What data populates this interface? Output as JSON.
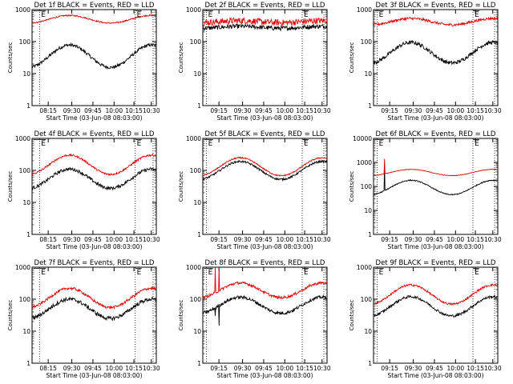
{
  "chart_data": [
    {
      "type": "line",
      "title": "Det 1f BLACK = Events, RED = LLD",
      "xlabel": "Start Time (03-Jun-08 08:03:00)",
      "ylabel": "Counts/sec",
      "yscale": "log",
      "ylim": [
        1,
        1000
      ],
      "yticks": [
        1,
        10,
        100,
        1000
      ],
      "xticks": [
        "08:15",
        "09:30",
        "09:45",
        "10:00",
        "10:15",
        "10:30"
      ],
      "markers": [
        {
          "label": "E",
          "pos": 0.06
        },
        {
          "label": "E",
          "pos": 0.83
        }
      ],
      "series": [
        {
          "color": "#000000",
          "base": 35,
          "amp": 0.35,
          "noise": 0.05,
          "spikes": []
        },
        {
          "color": "#e00000",
          "base": 500,
          "amp": 0.12,
          "noise": 0.02,
          "spikes": []
        }
      ]
    },
    {
      "type": "line",
      "title": "Det 2f BLACK = Events, RED = LLD",
      "xlabel": "Start Time (03-Jun-08 08:03:00)",
      "ylabel": "Counts/sec",
      "yscale": "log",
      "ylim": [
        1,
        1000
      ],
      "yticks": [
        1,
        10,
        100,
        1000
      ],
      "xticks": [
        "09:15",
        "09:30",
        "09:45",
        "10:00",
        "10:15",
        "10:30"
      ],
      "markers": [
        {
          "label": "E",
          "pos": 0.03
        },
        {
          "label": "E",
          "pos": 0.8
        }
      ],
      "series": [
        {
          "color": "#000000",
          "base": 280,
          "amp": 0.03,
          "noise": 0.07,
          "spikes": []
        },
        {
          "color": "#e00000",
          "base": 420,
          "amp": 0.03,
          "noise": 0.1,
          "spikes": []
        }
      ]
    },
    {
      "type": "line",
      "title": "Det 3f BLACK = Events, RED = LLD",
      "xlabel": "Start Time (03-Jun-08 08:03:00)",
      "ylabel": "Counts/sec",
      "yscale": "log",
      "ylim": [
        1,
        1000
      ],
      "yticks": [
        1,
        10,
        100,
        1000
      ],
      "xticks": [
        "09:15",
        "09:30",
        "09:45",
        "10:00",
        "10:15",
        "10:30"
      ],
      "markers": [
        {
          "label": "E",
          "pos": 0.03
        },
        {
          "label": "E",
          "pos": 0.8
        }
      ],
      "series": [
        {
          "color": "#000000",
          "base": 45,
          "amp": 0.32,
          "noise": 0.06,
          "spikes": []
        },
        {
          "color": "#e00000",
          "base": 420,
          "amp": 0.1,
          "noise": 0.04,
          "spikes": []
        }
      ]
    },
    {
      "type": "line",
      "title": "Det 4f BLACK = Events, RED = LLD",
      "xlabel": "Start Time (03-Jun-08 08:03:00)",
      "ylabel": "Counts/sec",
      "yscale": "log",
      "ylim": [
        1,
        1000
      ],
      "yticks": [
        1,
        10,
        100,
        1000
      ],
      "xticks": [
        "08:15",
        "09:30",
        "09:45",
        "10:00",
        "10:15",
        "10:30"
      ],
      "markers": [
        {
          "label": "E",
          "pos": 0.06
        },
        {
          "label": "E",
          "pos": 0.83
        }
      ],
      "series": [
        {
          "color": "#000000",
          "base": 55,
          "amp": 0.3,
          "noise": 0.05,
          "spikes": []
        },
        {
          "color": "#e00000",
          "base": 150,
          "amp": 0.3,
          "noise": 0.03,
          "spikes": []
        }
      ]
    },
    {
      "type": "line",
      "title": "Det 5f BLACK = Events, RED = LLD",
      "xlabel": "Start Time (03-Jun-08 08:03:00)",
      "ylabel": "Counts/sec",
      "yscale": "log",
      "ylim": [
        1,
        1000
      ],
      "yticks": [
        1,
        10,
        100,
        1000
      ],
      "xticks": [
        "09:15",
        "09:30",
        "09:45",
        "10:00",
        "10:15",
        "10:30"
      ],
      "markers": [
        {
          "label": "E",
          "pos": 0.03
        },
        {
          "label": "E",
          "pos": 0.8
        }
      ],
      "series": [
        {
          "color": "#000000",
          "base": 100,
          "amp": 0.28,
          "noise": 0.03,
          "spikes": []
        },
        {
          "color": "#e00000",
          "base": 130,
          "amp": 0.28,
          "noise": 0.02,
          "spikes": []
        }
      ]
    },
    {
      "type": "line",
      "title": "Det 6f BLACK = Events, RED = LLD",
      "xlabel": "Start Time (03-Jun-08 08:03:00)",
      "ylabel": "Counts/sec",
      "yscale": "log",
      "ylim": [
        1,
        10000
      ],
      "yticks": [
        1,
        10,
        100,
        1000,
        10000
      ],
      "xticks": [
        "09:15",
        "09:30",
        "09:45",
        "10:00",
        "10:15",
        "10:30"
      ],
      "markers": [
        {
          "label": "E",
          "pos": 0.03
        },
        {
          "label": "E",
          "pos": 0.8
        }
      ],
      "series": [
        {
          "color": "#000000",
          "base": 90,
          "amp": 0.3,
          "noise": 0.02,
          "spikes": [
            {
              "at": 0.09,
              "value": 900
            }
          ]
        },
        {
          "color": "#e00000",
          "base": 380,
          "amp": 0.13,
          "noise": 0.01,
          "spikes": [
            {
              "at": 0.09,
              "value": 1400
            }
          ]
        }
      ]
    },
    {
      "type": "line",
      "title": "Det 7f BLACK = Events, RED = LLD",
      "xlabel": "Start Time (03-Jun-08 08:03:00)",
      "ylabel": "Counts/sec",
      "yscale": "log",
      "ylim": [
        1,
        1000
      ],
      "yticks": [
        1,
        10,
        100,
        1000
      ],
      "xticks": [
        "08:15",
        "09:30",
        "09:45",
        "10:00",
        "10:15",
        "10:30"
      ],
      "markers": [
        {
          "label": "E",
          "pos": 0.06
        },
        {
          "label": "E",
          "pos": 0.83
        }
      ],
      "series": [
        {
          "color": "#000000",
          "base": 50,
          "amp": 0.3,
          "noise": 0.06,
          "spikes": []
        },
        {
          "color": "#e00000",
          "base": 110,
          "amp": 0.3,
          "noise": 0.04,
          "spikes": []
        }
      ]
    },
    {
      "type": "line",
      "title": "Det 8f BLACK = Events, RED = LLD",
      "xlabel": "Start Time (03-Jun-08 08:03:00)",
      "ylabel": "Counts/sec",
      "yscale": "log",
      "ylim": [
        1,
        1000
      ],
      "yticks": [
        1,
        10,
        100,
        1000
      ],
      "xticks": [
        "09:15",
        "09:30",
        "09:45",
        "10:00",
        "10:15",
        "10:30"
      ],
      "markers": [
        {
          "label": "E",
          "pos": 0.03
        },
        {
          "label": "E",
          "pos": 0.8
        }
      ],
      "series": [
        {
          "color": "#000000",
          "base": 65,
          "amp": 0.25,
          "noise": 0.05,
          "spikes": [
            {
              "at": 0.1,
              "value": 30
            },
            {
              "at": 0.13,
              "value": 15
            }
          ]
        },
        {
          "color": "#e00000",
          "base": 190,
          "amp": 0.23,
          "noise": 0.04,
          "spikes": [
            {
              "at": 0.1,
              "value": 1000
            },
            {
              "at": 0.13,
              "value": 1000
            }
          ]
        }
      ]
    },
    {
      "type": "line",
      "title": "Det 9f BLACK = Events, RED = LLD",
      "xlabel": "Start Time (03-Jun-08 08:03:00)",
      "ylabel": "Counts/sec",
      "yscale": "log",
      "ylim": [
        1,
        1000
      ],
      "yticks": [
        1,
        10,
        100,
        1000
      ],
      "xticks": [
        "09:15",
        "09:30",
        "09:45",
        "10:00",
        "10:15",
        "10:30"
      ],
      "markers": [
        {
          "label": "E",
          "pos": 0.03
        },
        {
          "label": "E",
          "pos": 0.8
        }
      ],
      "series": [
        {
          "color": "#000000",
          "base": 60,
          "amp": 0.3,
          "noise": 0.04,
          "spikes": []
        },
        {
          "color": "#e00000",
          "base": 140,
          "amp": 0.3,
          "noise": 0.03,
          "spikes": []
        }
      ]
    }
  ]
}
